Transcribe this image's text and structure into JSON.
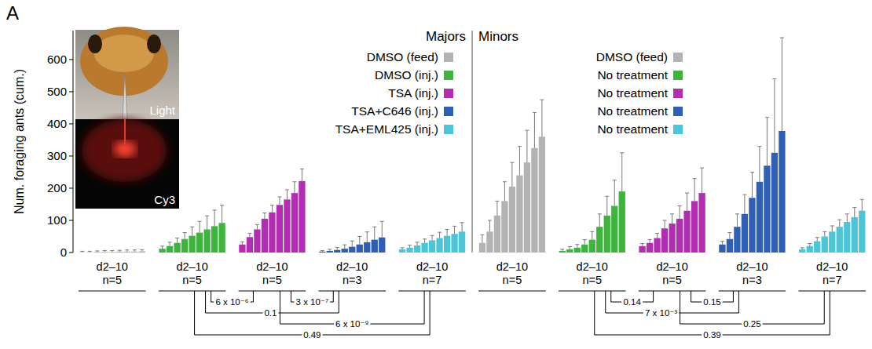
{
  "chart_data": {
    "type": "bar",
    "panel": "A",
    "y_label": "Num. foraging ants (cum.)",
    "ylim": [
      0,
      690
    ],
    "yticks": [
      0,
      100,
      200,
      300,
      400,
      500,
      600
    ],
    "inset": {
      "top_label": "Light",
      "bottom_label": "Cy3"
    },
    "sections": [
      {
        "title": "Majors",
        "series": [
          {
            "name": "DMSO (feed)",
            "color": "#b3b3b3",
            "category": "d2–10",
            "n": "n=5",
            "values": [
              1,
              1,
              2,
              2,
              2,
              3,
              3,
              3,
              4
            ],
            "errors": [
              3,
              3,
              3,
              4,
              4,
              4,
              5,
              5,
              5
            ]
          },
          {
            "name": "DMSO (inj.)",
            "color": "#3db53d",
            "category": "d2–10",
            "n": "n=5",
            "values": [
              12,
              20,
              30,
              42,
              52,
              62,
              72,
              82,
              92
            ],
            "errors": [
              8,
              12,
              15,
              20,
              28,
              35,
              42,
              50,
              55
            ]
          },
          {
            "name": "TSA (inj.)",
            "color": "#b32db3",
            "category": "d2–10",
            "n": "n=5",
            "values": [
              25,
              48,
              72,
              105,
              125,
              148,
              165,
              185,
              222
            ],
            "errors": [
              8,
              12,
              15,
              18,
              22,
              25,
              30,
              35,
              38
            ]
          },
          {
            "name": "TSA+C646 (inj.)",
            "color": "#2f5fb5",
            "category": "d2–10",
            "n": "n=3",
            "values": [
              3,
              5,
              8,
              12,
              18,
              25,
              32,
              40,
              47
            ],
            "errors": [
              3,
              5,
              8,
              12,
              18,
              25,
              32,
              40,
              50
            ]
          },
          {
            "name": "TSA+EML425 (inj.)",
            "color": "#4cc6d6",
            "category": "d2–10",
            "n": "n=7",
            "values": [
              10,
              15,
              22,
              30,
              38,
              45,
              52,
              58,
              65
            ],
            "errors": [
              5,
              8,
              10,
              12,
              15,
              18,
              20,
              24,
              28
            ]
          }
        ]
      },
      {
        "title": "Minors",
        "series": [
          {
            "name": "DMSO (feed)",
            "color": "#b3b3b3",
            "category": "d2–10",
            "n": "n=5",
            "values": [
              30,
              65,
              115,
              160,
              205,
              240,
              280,
              325,
              360
            ],
            "errors": [
              25,
              35,
              45,
              60,
              75,
              90,
              100,
              110,
              115
            ]
          },
          {
            "name": "No treatment",
            "color": "#3db53d",
            "category": "d2–10",
            "n": "n=5",
            "values": [
              5,
              10,
              15,
              25,
              40,
              80,
              115,
              145,
              190
            ],
            "errors": [
              5,
              8,
              10,
              15,
              25,
              40,
              60,
              80,
              120
            ]
          },
          {
            "name": "No treatment",
            "color": "#b32db3",
            "category": "d2–10",
            "n": "n=5",
            "values": [
              20,
              30,
              45,
              75,
              90,
              105,
              130,
              160,
              185
            ],
            "errors": [
              8,
              10,
              15,
              25,
              30,
              40,
              55,
              70,
              78
            ]
          },
          {
            "name": "No treatment",
            "color": "#2f5fb5",
            "category": "d2–10",
            "n": "n=3",
            "values": [
              25,
              42,
              80,
              120,
              170,
              220,
              270,
              310,
              378
            ],
            "errors": [
              10,
              20,
              40,
              60,
              80,
              110,
              150,
              230,
              290
            ]
          },
          {
            "name": "No treatment",
            "color": "#4cc6d6",
            "category": "d2–10",
            "n": "n=7",
            "values": [
              10,
              20,
              35,
              50,
              65,
              80,
              95,
              110,
              130
            ],
            "errors": [
              5,
              8,
              12,
              15,
              18,
              22,
              25,
              30,
              35
            ]
          }
        ]
      }
    ],
    "comparisons": [
      {
        "section": 0,
        "from": 1,
        "to": 2,
        "label": "6 x 10⁻⁶"
      },
      {
        "section": 0,
        "from": 2,
        "to": 3,
        "label": "3 x 10⁻⁷"
      },
      {
        "section": 0,
        "from": 1,
        "to": 3,
        "label": "0.1"
      },
      {
        "section": 0,
        "from": 2,
        "to": 4,
        "label": "6 x 10⁻⁹"
      },
      {
        "section": 0,
        "from": 1,
        "to": 4,
        "label": "0.49"
      },
      {
        "section": 1,
        "from": 1,
        "to": 2,
        "label": "0.14"
      },
      {
        "section": 1,
        "from": 2,
        "to": 3,
        "label": "0.15"
      },
      {
        "section": 1,
        "from": 1,
        "to": 3,
        "label": "7 x 10⁻³"
      },
      {
        "section": 1,
        "from": 2,
        "to": 4,
        "label": "0.25"
      },
      {
        "section": 1,
        "from": 1,
        "to": 4,
        "label": "0.39"
      }
    ]
  }
}
